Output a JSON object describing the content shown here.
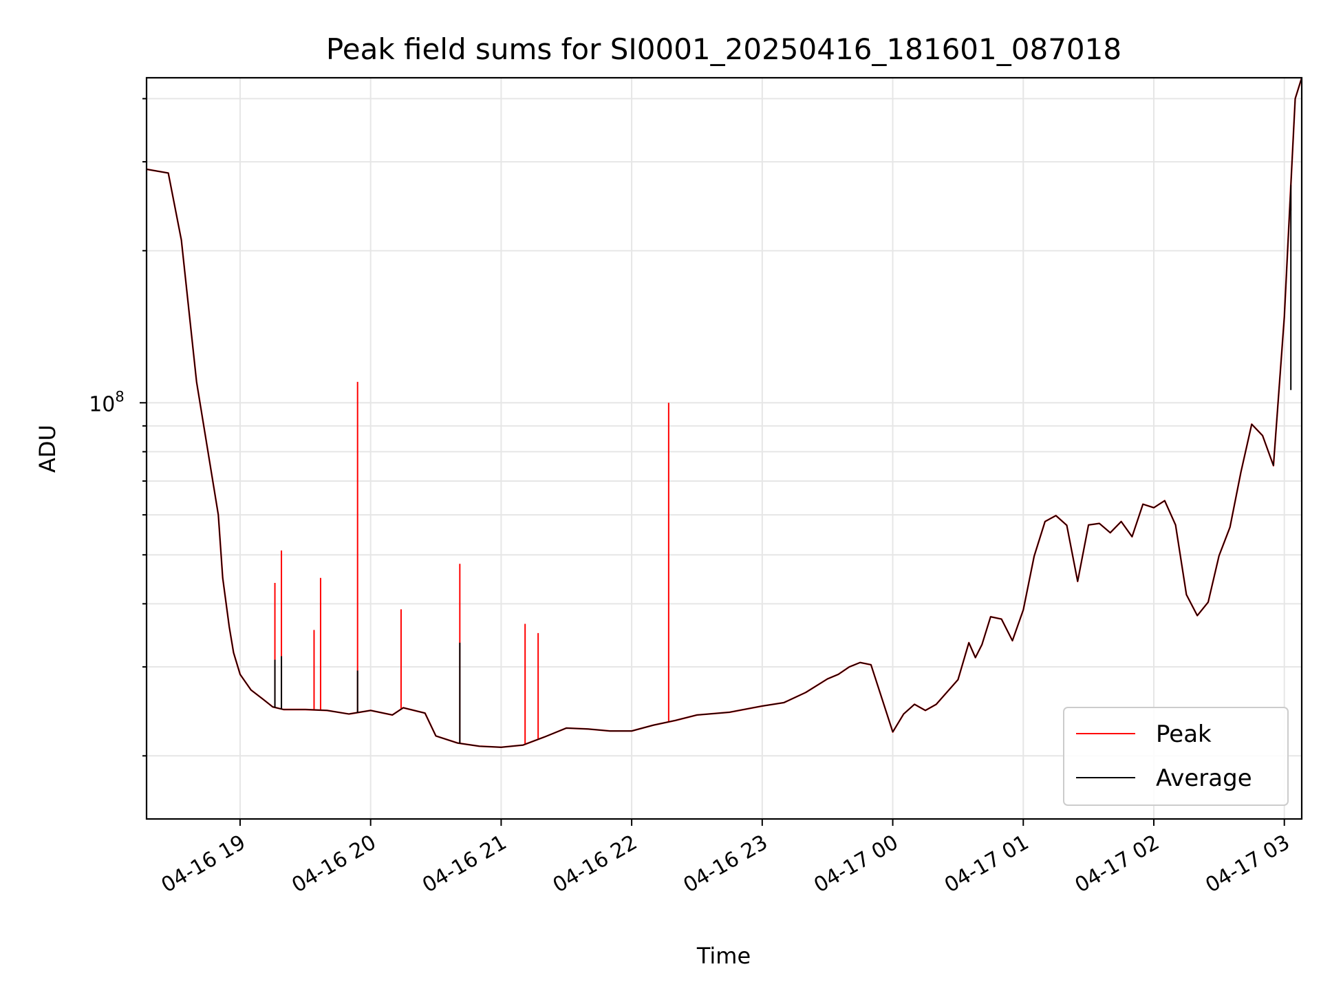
{
  "chart_data": {
    "type": "line",
    "title": "Peak field sums for SI0001_20250416_181601_087018",
    "xlabel": "Time",
    "ylabel": "ADU",
    "x_range": [
      "04-16 18:17",
      "04-17 03:08"
    ],
    "ylim": [
      15000000,
      440000000
    ],
    "y_scale": "log",
    "grid": true,
    "x_ticks": [
      "04-16 19",
      "04-16 20",
      "04-16 21",
      "04-16 22",
      "04-16 23",
      "04-17 00",
      "04-17 01",
      "04-17 02",
      "04-17 03"
    ],
    "x_tick_times": [
      "04-16 19:00",
      "04-16 20:00",
      "04-16 21:00",
      "04-16 22:00",
      "04-16 23:00",
      "04-17 00:00",
      "04-17 01:00",
      "04-17 02:00",
      "04-17 03:00"
    ],
    "y_tick_major": {
      "value": 100000000,
      "base": "10",
      "exp": "8"
    },
    "y_tick_minor": [
      20000000,
      30000000,
      40000000,
      50000000,
      60000000,
      70000000,
      80000000,
      90000000,
      200000000,
      300000000,
      400000000
    ],
    "legend_position": "lower right",
    "series": [
      {
        "name": "Peak",
        "color": "#ff0000",
        "x": [
          "04-16 18:17",
          "04-16 18:27",
          "04-16 18:33",
          "04-16 18:40",
          "04-16 18:50",
          "04-16 18:52",
          "04-16 18:55",
          "04-16 18:57",
          "04-16 19:00",
          "04-16 19:05",
          "04-16 19:10",
          "04-16 19:15",
          "04-16 19:20",
          "04-16 19:30",
          "04-16 19:40",
          "04-16 19:50",
          "04-16 20:00",
          "04-16 20:10",
          "04-16 20:15",
          "04-16 20:25",
          "04-16 20:30",
          "04-16 20:40",
          "04-16 20:50",
          "04-16 21:00",
          "04-16 21:10",
          "04-16 21:20",
          "04-16 21:30",
          "04-16 21:40",
          "04-16 21:50",
          "04-16 22:00",
          "04-16 22:10",
          "04-16 22:20",
          "04-16 22:30",
          "04-16 22:45",
          "04-16 23:00",
          "04-16 23:10",
          "04-16 23:20",
          "04-16 23:30",
          "04-16 23:35",
          "04-16 23:40",
          "04-16 23:45",
          "04-16 23:50",
          "04-17 00:00",
          "04-17 00:05",
          "04-17 00:10",
          "04-17 00:15",
          "04-17 00:20",
          "04-17 00:30",
          "04-17 00:35",
          "04-17 00:38",
          "04-17 00:41",
          "04-17 00:45",
          "04-17 00:50",
          "04-17 00:55",
          "04-17 01:00",
          "04-17 01:05",
          "04-17 01:10",
          "04-17 01:15",
          "04-17 01:20",
          "04-17 01:25",
          "04-17 01:30",
          "04-17 01:35",
          "04-17 01:40",
          "04-17 01:45",
          "04-17 01:50",
          "04-17 01:55",
          "04-17 02:00",
          "04-17 02:05",
          "04-17 02:10",
          "04-17 02:15",
          "04-17 02:20",
          "04-17 02:25",
          "04-17 02:30",
          "04-17 02:35",
          "04-17 02:40",
          "04-17 02:45",
          "04-17 02:50",
          "04-17 02:55",
          "04-17 03:00",
          "04-17 03:03",
          "04-17 03:05",
          "04-17 03:08"
        ],
        "values": [
          290000000,
          285000000,
          210000000,
          110000000,
          60000000,
          45000000,
          36000000,
          32000000,
          29000000,
          27000000,
          26000000,
          25000000,
          24700000,
          24700000,
          24600000,
          24200000,
          24600000,
          24100000,
          24900000,
          24300000,
          21900000,
          21200000,
          20900000,
          20800000,
          21000000,
          21800000,
          22700000,
          22600000,
          22400000,
          22400000,
          23000000,
          23500000,
          24100000,
          24400000,
          25100000,
          25500000,
          26700000,
          28400000,
          29000000,
          30000000,
          30600000,
          30300000,
          22300000,
          24200000,
          25300000,
          24600000,
          25300000,
          28300000,
          33500000,
          31300000,
          33200000,
          37700000,
          37300000,
          33800000,
          38900000,
          49700000,
          58200000,
          59800000,
          57200000,
          44300000,
          57300000,
          57700000,
          55300000,
          58200000,
          54300000,
          63000000,
          62000000,
          64000000,
          57300000,
          41700000,
          37900000,
          40300000,
          49800000,
          56700000,
          72800000,
          90700000,
          86100000,
          75100000,
          148000000,
          270000000,
          400000000,
          440000000
        ],
        "spikes": [
          {
            "x": "04-16 19:16",
            "value": 44000000
          },
          {
            "x": "04-16 19:19",
            "value": 51000000
          },
          {
            "x": "04-16 19:34",
            "value": 35500000
          },
          {
            "x": "04-16 19:37",
            "value": 45000000
          },
          {
            "x": "04-16 19:54",
            "value": 110000000
          },
          {
            "x": "04-16 20:14",
            "value": 39000000
          },
          {
            "x": "04-16 20:41",
            "value": 48000000
          },
          {
            "x": "04-16 21:11",
            "value": 36500000
          },
          {
            "x": "04-16 21:17",
            "value": 35000000
          },
          {
            "x": "04-16 22:17",
            "value": 100000000
          },
          {
            "x": "04-17 03:03",
            "value": 240000000
          }
        ]
      },
      {
        "name": "Average",
        "color": "#000000",
        "x": [
          "04-16 18:17",
          "04-16 18:27",
          "04-16 18:33",
          "04-16 18:40",
          "04-16 18:50",
          "04-16 18:52",
          "04-16 18:55",
          "04-16 18:57",
          "04-16 19:00",
          "04-16 19:05",
          "04-16 19:10",
          "04-16 19:15",
          "04-16 19:20",
          "04-16 19:30",
          "04-16 19:40",
          "04-16 19:50",
          "04-16 20:00",
          "04-16 20:10",
          "04-16 20:15",
          "04-16 20:25",
          "04-16 20:30",
          "04-16 20:40",
          "04-16 20:50",
          "04-16 21:00",
          "04-16 21:10",
          "04-16 21:20",
          "04-16 21:30",
          "04-16 21:40",
          "04-16 21:50",
          "04-16 22:00",
          "04-16 22:10",
          "04-16 22:20",
          "04-16 22:30",
          "04-16 22:45",
          "04-16 23:00",
          "04-16 23:10",
          "04-16 23:20",
          "04-16 23:30",
          "04-16 23:35",
          "04-16 23:40",
          "04-16 23:45",
          "04-16 23:50",
          "04-17 00:00",
          "04-17 00:05",
          "04-17 00:10",
          "04-17 00:15",
          "04-17 00:20",
          "04-17 00:30",
          "04-17 00:35",
          "04-17 00:38",
          "04-17 00:41",
          "04-17 00:45",
          "04-17 00:50",
          "04-17 00:55",
          "04-17 01:00",
          "04-17 01:05",
          "04-17 01:10",
          "04-17 01:15",
          "04-17 01:20",
          "04-17 01:25",
          "04-17 01:30",
          "04-17 01:35",
          "04-17 01:40",
          "04-17 01:45",
          "04-17 01:50",
          "04-17 01:55",
          "04-17 02:00",
          "04-17 02:05",
          "04-17 02:10",
          "04-17 02:15",
          "04-17 02:20",
          "04-17 02:25",
          "04-17 02:30",
          "04-17 02:35",
          "04-17 02:40",
          "04-17 02:45",
          "04-17 02:50",
          "04-17 02:55",
          "04-17 03:00",
          "04-17 03:03",
          "04-17 03:05",
          "04-17 03:08"
        ],
        "values": [
          290000000,
          285000000,
          210000000,
          110000000,
          60000000,
          45000000,
          36000000,
          32000000,
          29000000,
          27000000,
          26000000,
          25000000,
          24700000,
          24700000,
          24600000,
          24200000,
          24600000,
          24100000,
          24900000,
          24300000,
          21900000,
          21200000,
          20900000,
          20800000,
          21000000,
          21800000,
          22700000,
          22600000,
          22400000,
          22400000,
          23000000,
          23500000,
          24100000,
          24400000,
          25100000,
          25500000,
          26700000,
          28400000,
          29000000,
          30000000,
          30600000,
          30300000,
          22300000,
          24200000,
          25300000,
          24600000,
          25300000,
          28300000,
          33500000,
          31300000,
          33200000,
          37700000,
          37300000,
          33800000,
          38900000,
          49700000,
          58200000,
          59800000,
          57200000,
          44300000,
          57300000,
          57700000,
          55300000,
          58200000,
          54300000,
          63000000,
          62000000,
          64000000,
          57300000,
          41700000,
          37900000,
          40300000,
          49800000,
          56700000,
          72800000,
          90700000,
          86100000,
          75100000,
          148000000,
          270000000,
          400000000,
          440000000
        ],
        "spikes": [
          {
            "x": "04-16 19:16",
            "value": 31000000
          },
          {
            "x": "04-16 19:19",
            "value": 31500000
          },
          {
            "x": "04-16 19:54",
            "value": 29500000
          },
          {
            "x": "04-16 20:41",
            "value": 33500000
          },
          {
            "x": "04-17 03:03",
            "value": 106000000
          }
        ]
      }
    ]
  }
}
